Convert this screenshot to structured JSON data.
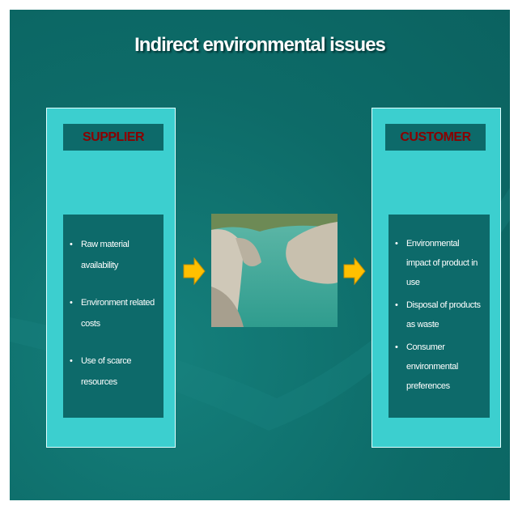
{
  "title": "Indirect environmental issues",
  "supplier": {
    "heading": "SUPPLIER",
    "items": [
      "Raw material availability",
      "Environment related costs",
      "Use of scarce resources"
    ]
  },
  "customer": {
    "heading": "CUSTOMER",
    "items": [
      "Environmental impact of product in use",
      "Disposal of products as waste",
      "Consumer environmental preferences"
    ]
  }
}
